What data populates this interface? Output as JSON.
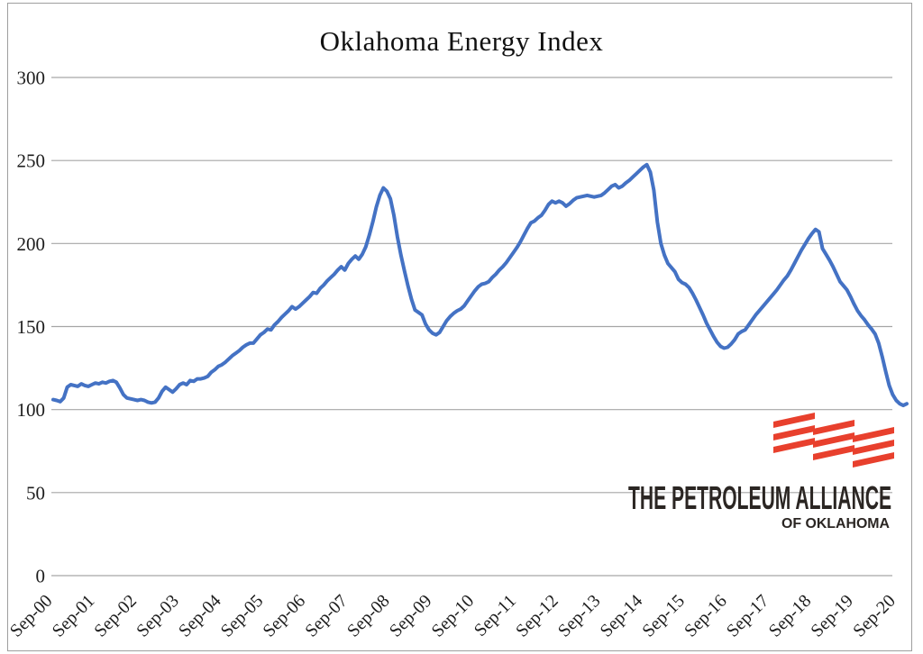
{
  "page": {
    "title": "Oklahoma Energy Index"
  },
  "colors": {
    "line": "#4472C4",
    "grid": "#A6A6A6",
    "axis_text": "#1D1D1D",
    "logo_red": "#E8402D",
    "logo_dark": "#2B2623",
    "frame_border": "#9E9E9E"
  },
  "chart_data": {
    "type": "line",
    "title": "Oklahoma Energy Index",
    "xlabel": "",
    "ylabel": "",
    "x_start": "Sep-2000",
    "x_end": "Dec-2020",
    "x_frequency": "monthly",
    "grid": "horizontal-only",
    "legend": "none",
    "ylim": [
      0,
      300
    ],
    "y_ticks": [
      0,
      50,
      100,
      150,
      200,
      250,
      300
    ],
    "x_tick_labels": [
      "Sep-00",
      "Sep-01",
      "Sep-02",
      "Sep-03",
      "Sep-04",
      "Sep-05",
      "Sep-06",
      "Sep-07",
      "Sep-08",
      "Sep-09",
      "Sep-10",
      "Sep-11",
      "Sep-12",
      "Sep-13",
      "Sep-14",
      "Sep-15",
      "Sep-16",
      "Sep-17",
      "Sep-18",
      "Sep-19",
      "Sep-20"
    ],
    "x_ticks_every_n_points": 12,
    "values": [
      106,
      105.5,
      104.8,
      107,
      113.5,
      115,
      114.5,
      114,
      115.5,
      114.5,
      114,
      115,
      116,
      115.5,
      116.5,
      116,
      117,
      117.5,
      116.5,
      113,
      109,
      107,
      106.5,
      106,
      105.5,
      106,
      105.5,
      104.5,
      104,
      104.5,
      107,
      111,
      113.5,
      112,
      110.5,
      112.5,
      115,
      116,
      115,
      117.5,
      117,
      118.5,
      118.5,
      119,
      120,
      122.5,
      124,
      126,
      127,
      128.5,
      130.5,
      132.5,
      134,
      135.5,
      137.5,
      139,
      140,
      140,
      142.5,
      145,
      146.5,
      148.5,
      148,
      151,
      153,
      155.5,
      157.5,
      159.5,
      162,
      160.5,
      162,
      164,
      166,
      168,
      170.5,
      170,
      173,
      175,
      177.5,
      179.5,
      181.5,
      184,
      186,
      184,
      188,
      190.5,
      192.5,
      190.5,
      193.5,
      198,
      205,
      213,
      222,
      229,
      233.5,
      231.5,
      227,
      217,
      204,
      193,
      183.5,
      174.5,
      166.5,
      160,
      158.5,
      157,
      151.5,
      148,
      146,
      145,
      146.5,
      150,
      153.5,
      156,
      158,
      159.5,
      160.5,
      162.5,
      165.5,
      168.5,
      171.5,
      174,
      175.5,
      176,
      177,
      179.5,
      181.5,
      184,
      186,
      188.5,
      191.5,
      194.5,
      197.5,
      201,
      205,
      209,
      212.5,
      213.5,
      215.5,
      217,
      220,
      223.5,
      225.5,
      224.5,
      225.5,
      224.5,
      222.5,
      224,
      226,
      227.5,
      228,
      228.5,
      229,
      228.5,
      228,
      228.5,
      229,
      230.5,
      232.5,
      234.5,
      235.5,
      233.5,
      234.5,
      236.5,
      238,
      240,
      242,
      244,
      246,
      247.5,
      243,
      232,
      213,
      200,
      193,
      188,
      185.5,
      183,
      178.5,
      176.5,
      175.5,
      173.5,
      170,
      166,
      161.5,
      157,
      152,
      148,
      144,
      140.5,
      138,
      137,
      137.5,
      139.5,
      142,
      145.5,
      147,
      148,
      151,
      154,
      157,
      159.5,
      162,
      164.5,
      167,
      169.5,
      172,
      175,
      178,
      180.5,
      184,
      188,
      192,
      196,
      199.5,
      203,
      206,
      208.5,
      207,
      197,
      193.5,
      190,
      186,
      181.5,
      177,
      174.5,
      172,
      168,
      163.5,
      159.5,
      156.5,
      154,
      151,
      148.5,
      145.5,
      140,
      132,
      123,
      114.5,
      109,
      105.5,
      103.5,
      102.5,
      103.5
    ]
  },
  "logo": {
    "line1": "THE PETROLEUM ALLIANCE",
    "line2": "OF OKLAHOMA"
  }
}
